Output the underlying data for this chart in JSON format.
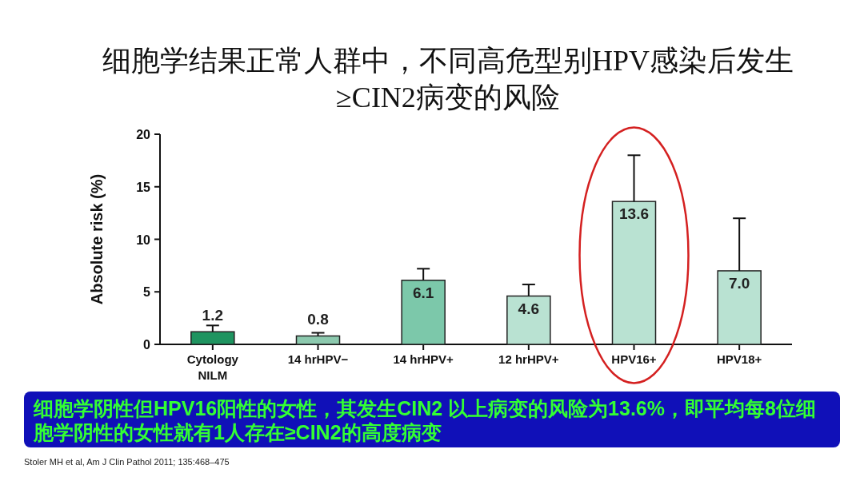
{
  "chart_data": {
    "type": "bar",
    "title": "细胞学结果正常人群中，不同高危型别HPV感染后发生\n≥CIN2病变的风险",
    "ylabel": "Absolute risk (%)",
    "categories": [
      "Cytology\nNILM",
      "14 hrHPV−",
      "14 hrHPV+",
      "12 hrHPV+",
      "HPV16+",
      "HPV18+"
    ],
    "values": [
      1.2,
      0.8,
      6.1,
      4.6,
      13.6,
      7.0
    ],
    "colors": [
      "#1f9460",
      "#8cc9ae",
      "#7cc8aa",
      "#b9e2d2",
      "#b9e2d2",
      "#b9e2d2"
    ],
    "errors": [
      [
        1.2,
        1.8
      ],
      [
        0.8,
        1.1
      ],
      [
        6.1,
        7.2
      ],
      [
        4.6,
        5.7
      ],
      [
        13.6,
        18.0
      ],
      [
        7.0,
        12.0
      ]
    ],
    "value_labels": [
      "1.2",
      "0.8",
      "6.1",
      "4.6",
      "13.6",
      "7.0"
    ],
    "ylim": [
      0,
      20
    ],
    "yticks": [
      0,
      5,
      10,
      15,
      20
    ],
    "grid": false,
    "annotations": [
      "细胞学阴性但HPV16阳性的女性，其发生CIN2 以上病变的风险为13.6%，即平均每8位细胞学阴性的女性就有1人存在≥CIN2的高度病变",
      "Stoler MH et al, Am J Clin Pathol 2011; 135:468–475"
    ]
  }
}
